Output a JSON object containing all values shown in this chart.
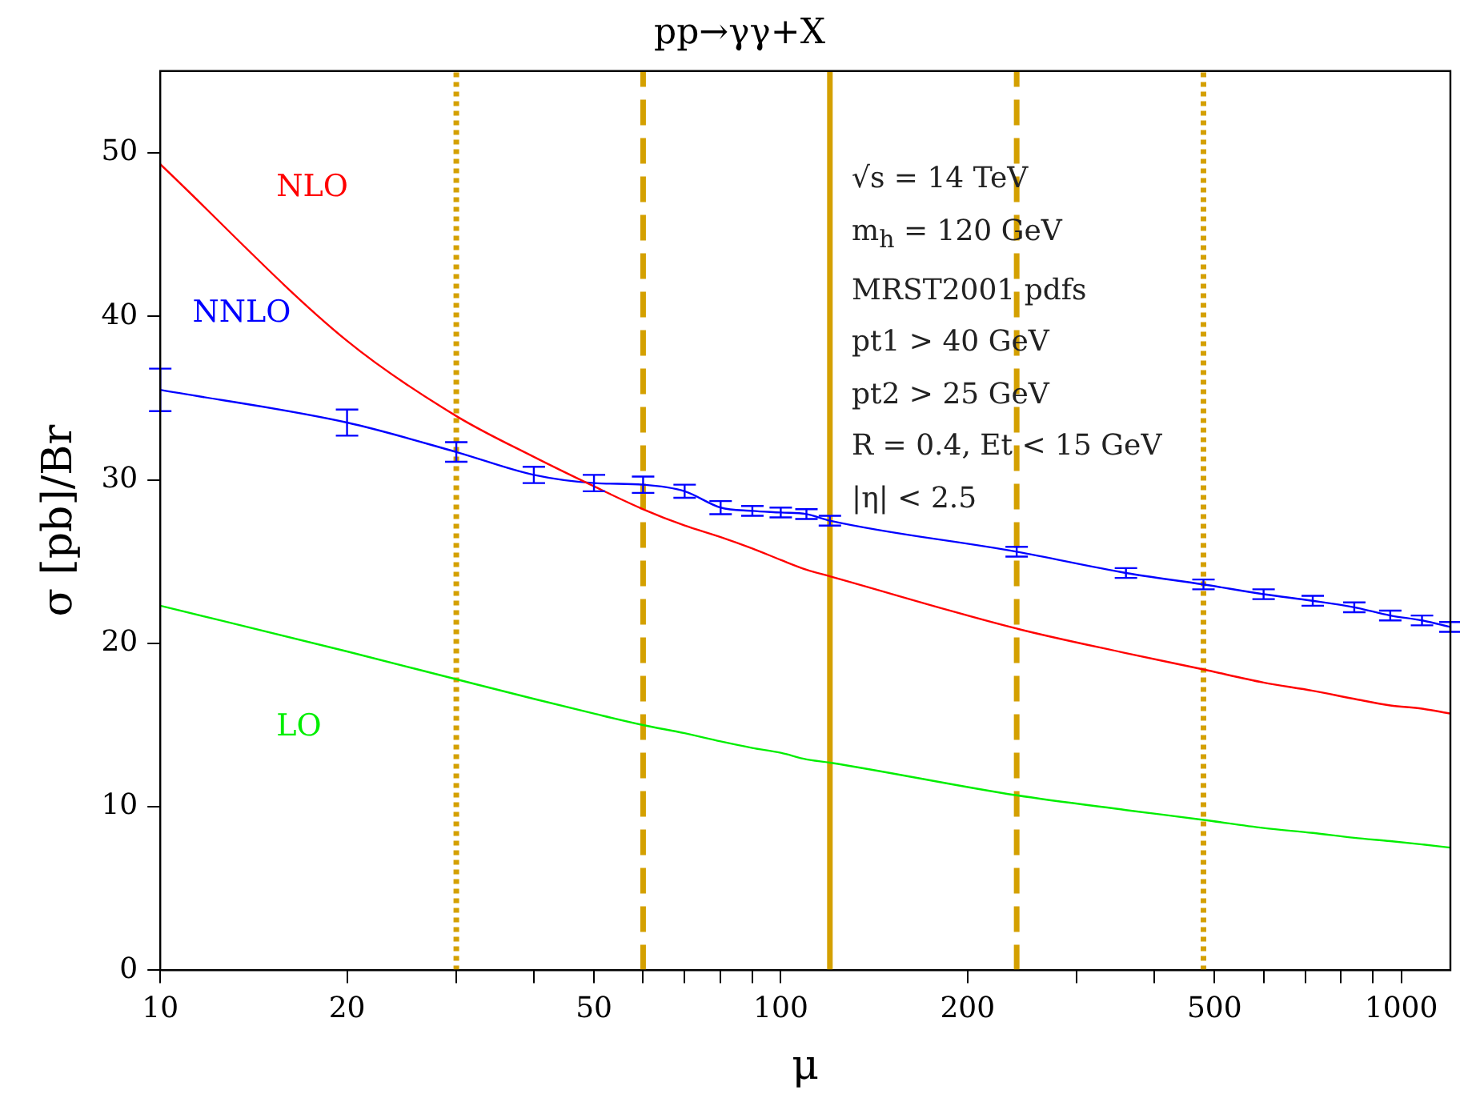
{
  "chart_data": {
    "type": "line",
    "title": "pp→γγ+X",
    "xlabel": "μ",
    "ylabel": "σ [pb]/Br",
    "log": "x",
    "grid": false,
    "legend": false,
    "marker": "none",
    "line_style": "solid",
    "xlim": [
      10,
      1200
    ],
    "ylim": [
      0,
      55
    ],
    "xticks": [
      10,
      20,
      {
        "value": 30,
        "label": null
      },
      {
        "value": 40,
        "label": null
      },
      50,
      {
        "value": 60,
        "label": null
      },
      {
        "value": 70,
        "label": null
      },
      {
        "value": 80,
        "label": null
      },
      {
        "value": 90,
        "label": null
      },
      100,
      200,
      {
        "value": 300,
        "label": null
      },
      {
        "value": 400,
        "label": null
      },
      500,
      {
        "value": 600,
        "label": null
      },
      {
        "value": 700,
        "label": null
      },
      {
        "value": 800,
        "label": null
      },
      {
        "value": 900,
        "label": null
      },
      1000
    ],
    "yticks": [
      0,
      10,
      20,
      30,
      40,
      50
    ],
    "x": [
      10,
      20,
      30,
      40,
      50,
      60,
      70,
      80,
      90,
      100,
      110,
      120,
      240,
      360,
      480,
      600,
      720,
      840,
      960,
      1080,
      1200
    ],
    "series": [
      {
        "name": "NLO",
        "color": "#ff0000",
        "values": [
          49.3,
          38.5,
          33.9,
          31.4,
          29.6,
          28.2,
          27.2,
          26.5,
          25.8,
          25.1,
          24.5,
          24.1,
          20.9,
          19.4,
          18.4,
          17.6,
          17.1,
          16.6,
          16.2,
          16.0,
          15.7
        ]
      },
      {
        "name": "NNLO",
        "color": "#0000ff",
        "values": [
          35.5,
          33.5,
          31.7,
          30.3,
          29.8,
          29.7,
          29.3,
          28.3,
          28.1,
          28.0,
          27.9,
          27.5,
          25.6,
          24.3,
          23.6,
          23.0,
          22.6,
          22.2,
          21.7,
          21.4,
          21.0
        ],
        "errors": [
          1.3,
          0.8,
          0.6,
          0.5,
          0.5,
          0.5,
          0.4,
          0.4,
          0.3,
          0.3,
          0.3,
          0.3,
          0.3,
          0.3,
          0.3,
          0.3,
          0.3,
          0.3,
          0.3,
          0.3,
          0.3
        ]
      },
      {
        "name": "LO",
        "color": "#00ee00",
        "values": [
          22.3,
          19.5,
          17.8,
          16.6,
          15.7,
          15.0,
          14.5,
          14.0,
          13.6,
          13.3,
          12.9,
          12.7,
          10.7,
          9.8,
          9.2,
          8.7,
          8.4,
          8.1,
          7.9,
          7.7,
          7.5
        ]
      }
    ],
    "ref_lines": [
      {
        "axis": "x",
        "value": 30,
        "color": "#d4a000",
        "line_style": "dotted"
      },
      {
        "axis": "x",
        "value": 60,
        "color": "#d4a000",
        "line_style": "dashed"
      },
      {
        "axis": "x",
        "value": 120,
        "color": "#d4a000",
        "line_style": "solid"
      },
      {
        "axis": "x",
        "value": 240,
        "color": "#d4a000",
        "line_style": "dashed"
      },
      {
        "axis": "x",
        "value": 480,
        "color": "#d4a000",
        "line_style": "dotted"
      }
    ],
    "annotations": [
      "√s = 14 TeV",
      "m$_{h}$ = 120 GeV",
      "MRST2001 pdfs",
      "pt1 > 40 GeV",
      "pt2 > 25 GeV",
      "R = 0.4, Et < 15 GeV",
      "|η| < 2.5"
    ]
  }
}
